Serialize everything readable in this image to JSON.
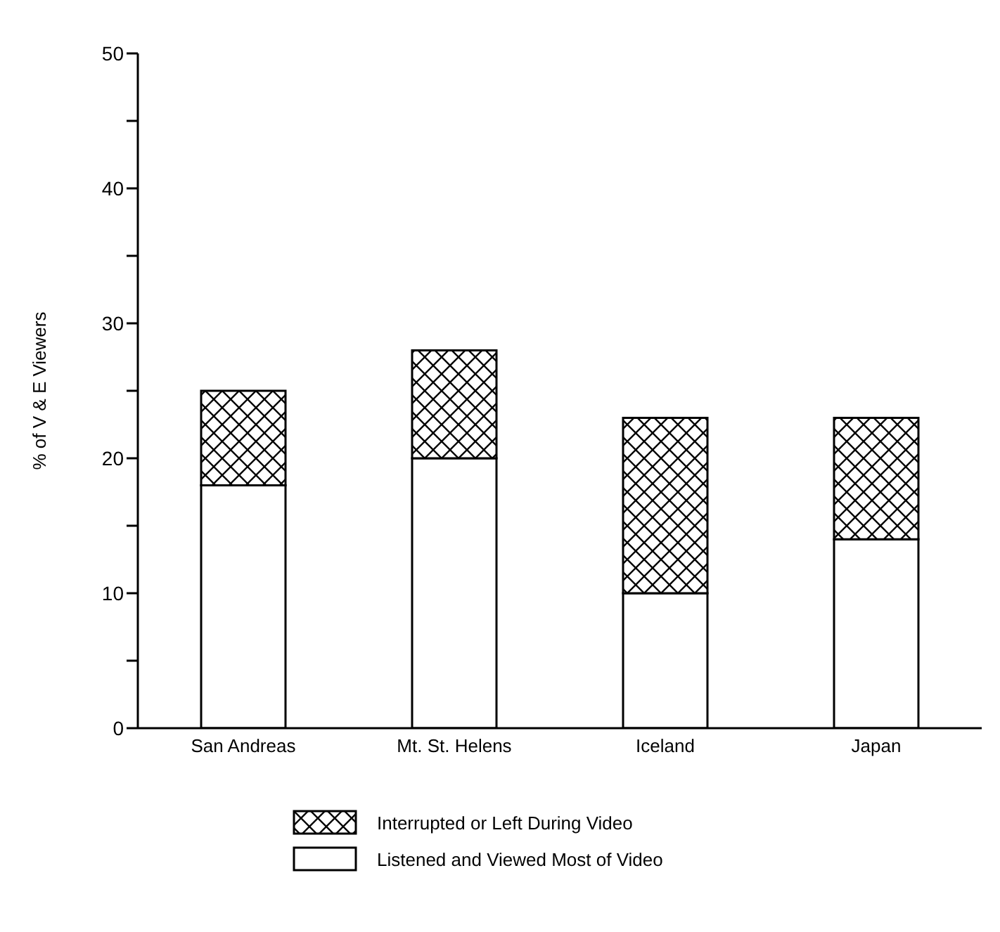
{
  "chart_data": {
    "type": "bar",
    "stacked": true,
    "ylabel": "% of V & E Viewers",
    "categories": [
      "San Andreas",
      "Mt. St. Helens",
      "Iceland",
      "Japan"
    ],
    "series": [
      {
        "name": "Listened and Viewed Most of Video",
        "color": "#ffffff",
        "values": [
          18,
          20,
          10,
          14
        ]
      },
      {
        "name": "Interrupted or Left During Video",
        "color": "#000000",
        "values": [
          7,
          8,
          13,
          9
        ]
      }
    ],
    "ylim": [
      0,
      50
    ],
    "yticks": [
      0,
      {
        "value": 5,
        "label": null
      },
      10,
      {
        "value": 15,
        "label": null
      },
      20,
      {
        "value": 25,
        "label": null
      },
      30,
      {
        "value": 35,
        "label": null
      },
      40,
      {
        "value": 45,
        "label": null
      },
      50
    ],
    "grid": false,
    "legend": "bottom"
  }
}
